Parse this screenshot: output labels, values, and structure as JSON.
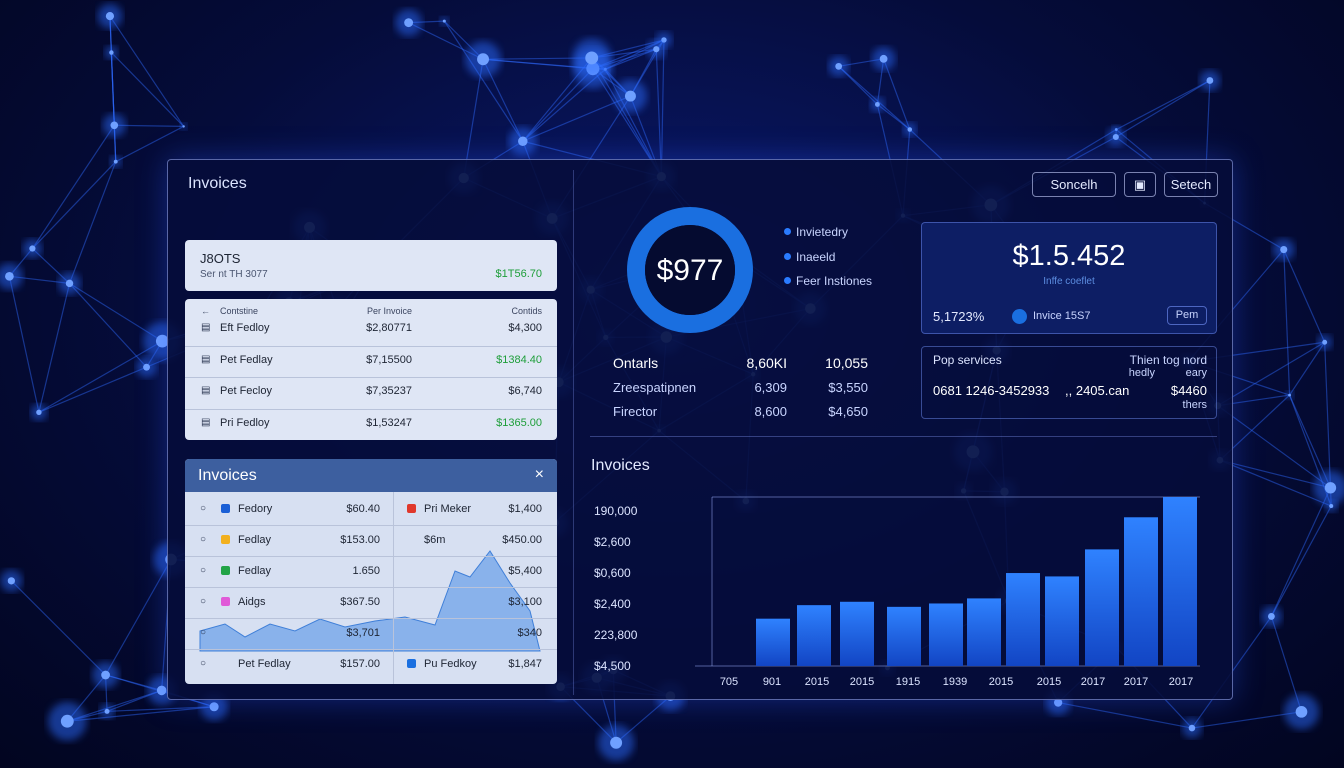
{
  "header": {
    "title": "Invoices",
    "buttons": [
      "Soncelh",
      "Setech"
    ]
  },
  "summary_card": {
    "code": "J8OTS",
    "subtitle": "Ser nt TH 3077",
    "amount": "$1T56.70",
    "amount_color": "#1e9e3a"
  },
  "table": {
    "columns": [
      "Contstine",
      "Per Invoice",
      "Contids"
    ],
    "rows": [
      {
        "name": "Eft Fedloy",
        "price": "$2,80771",
        "total": "$4,300",
        "total_color": "#1d2433"
      },
      {
        "name": "Pet Fedlay",
        "price": "$7,15500",
        "total": "$1384.40",
        "total_color": "#1e9e3a"
      },
      {
        "name": "Pet Fecloy",
        "price": "$7,35237",
        "total": "$6,740",
        "total_color": "#1d2433"
      },
      {
        "name": "Pri Fedloy",
        "price": "$1,53247",
        "total": "$1365.00",
        "total_color": "#1e9e3a"
      }
    ]
  },
  "invoices_panel": {
    "title": "Invoices",
    "close": "×",
    "rows": [
      {
        "left": {
          "marker": "#1a5fd6",
          "name": "Fedory",
          "amount": "$60.40"
        },
        "right": {
          "marker": "#e0382c",
          "name": "Pri Meker",
          "amount": "$1,400"
        }
      },
      {
        "left": {
          "marker": "#f2b01e",
          "name": "Fedlay",
          "amount": "$153.00"
        },
        "right": {
          "name": "$6m",
          "amount": "$450.00"
        }
      },
      {
        "left": {
          "marker": "#22a447",
          "name": "Fedlay",
          "amount": "1.650"
        },
        "right": {
          "amount": "$5,400"
        }
      },
      {
        "left": {
          "marker": "#e05ad8",
          "name": "Aidgs",
          "amount": "$367.50"
        },
        "right": {
          "amount": "$3,100"
        }
      },
      {
        "left": {
          "amount": "$3,701"
        },
        "right": {
          "amount": "$340"
        }
      },
      {
        "left": {
          "name": "Pet Fedlay",
          "amount": "$157.00"
        },
        "right": {
          "marker": "#1a6fe0",
          "name": "Pu Fedkoy",
          "amount": "$1,847"
        }
      }
    ]
  },
  "donut": {
    "center": "$977",
    "legend": [
      "Invietedry",
      "Inaeeld",
      "Feer Instiones"
    ]
  },
  "totals": {
    "rows": [
      [
        "Ontarls",
        "8,60KI",
        "10,055"
      ],
      [
        "Zreespatipnen",
        "6,309",
        "$3,550"
      ],
      [
        "Firector",
        "8,600",
        "$4,650"
      ]
    ]
  },
  "balance_card": {
    "amount": "$1.5.452",
    "caption": "Inffe coeflet",
    "rate": "5,1723%",
    "invoice": "Invice 15S7",
    "button": "Pem"
  },
  "services_card": {
    "title": "Pop services",
    "note_1": "Thien tog nord",
    "note_2": "hedly",
    "note_3": "eary",
    "number": "0681 1246-3452933",
    "site": ",, 2405.can",
    "amount": "$4460",
    "note_4": "thers"
  },
  "bar_chart": {
    "title": "Invoices",
    "y_labels": [
      "190,000",
      "$2,600",
      "$0,600",
      "$2,400",
      "223,800",
      "$4,500"
    ],
    "x_labels": [
      "705",
      "901",
      "2015",
      "2015",
      "1915",
      "1939",
      "2015",
      "2015",
      "2017",
      "2017",
      "2017"
    ],
    "values": [
      28,
      36,
      38,
      35,
      37,
      40,
      55,
      53,
      69,
      88,
      100
    ],
    "ylim": [
      0,
      100
    ]
  }
}
